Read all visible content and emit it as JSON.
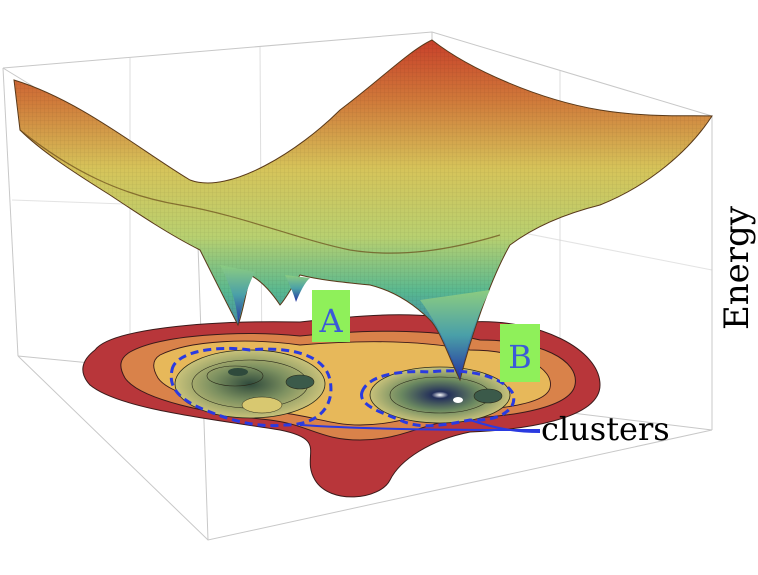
{
  "figure": {
    "axis_label": "Energy",
    "cluster_labels": [
      {
        "id": "A",
        "text": "A"
      },
      {
        "id": "B",
        "text": "B"
      }
    ],
    "annotation": "clusters"
  },
  "colors": {
    "box_lines": "#c8c8c8",
    "label_badge": "#8ff05a",
    "label_text": "#3a5ad8",
    "cluster_outline": "#2a3ae0",
    "annotation_line": "#2a3ae0",
    "contour_outer": "#b8363a",
    "contour_mid": "#d9824a",
    "contour_inner": "#e7b85a",
    "contour_core": "#c9c97a",
    "basin_dark": "#3b5a4a",
    "surface_top": "#c83a2a",
    "surface_mid": "#d8cf5a",
    "surface_low": "#5ab890",
    "surface_well": "#2a3aa0"
  }
}
